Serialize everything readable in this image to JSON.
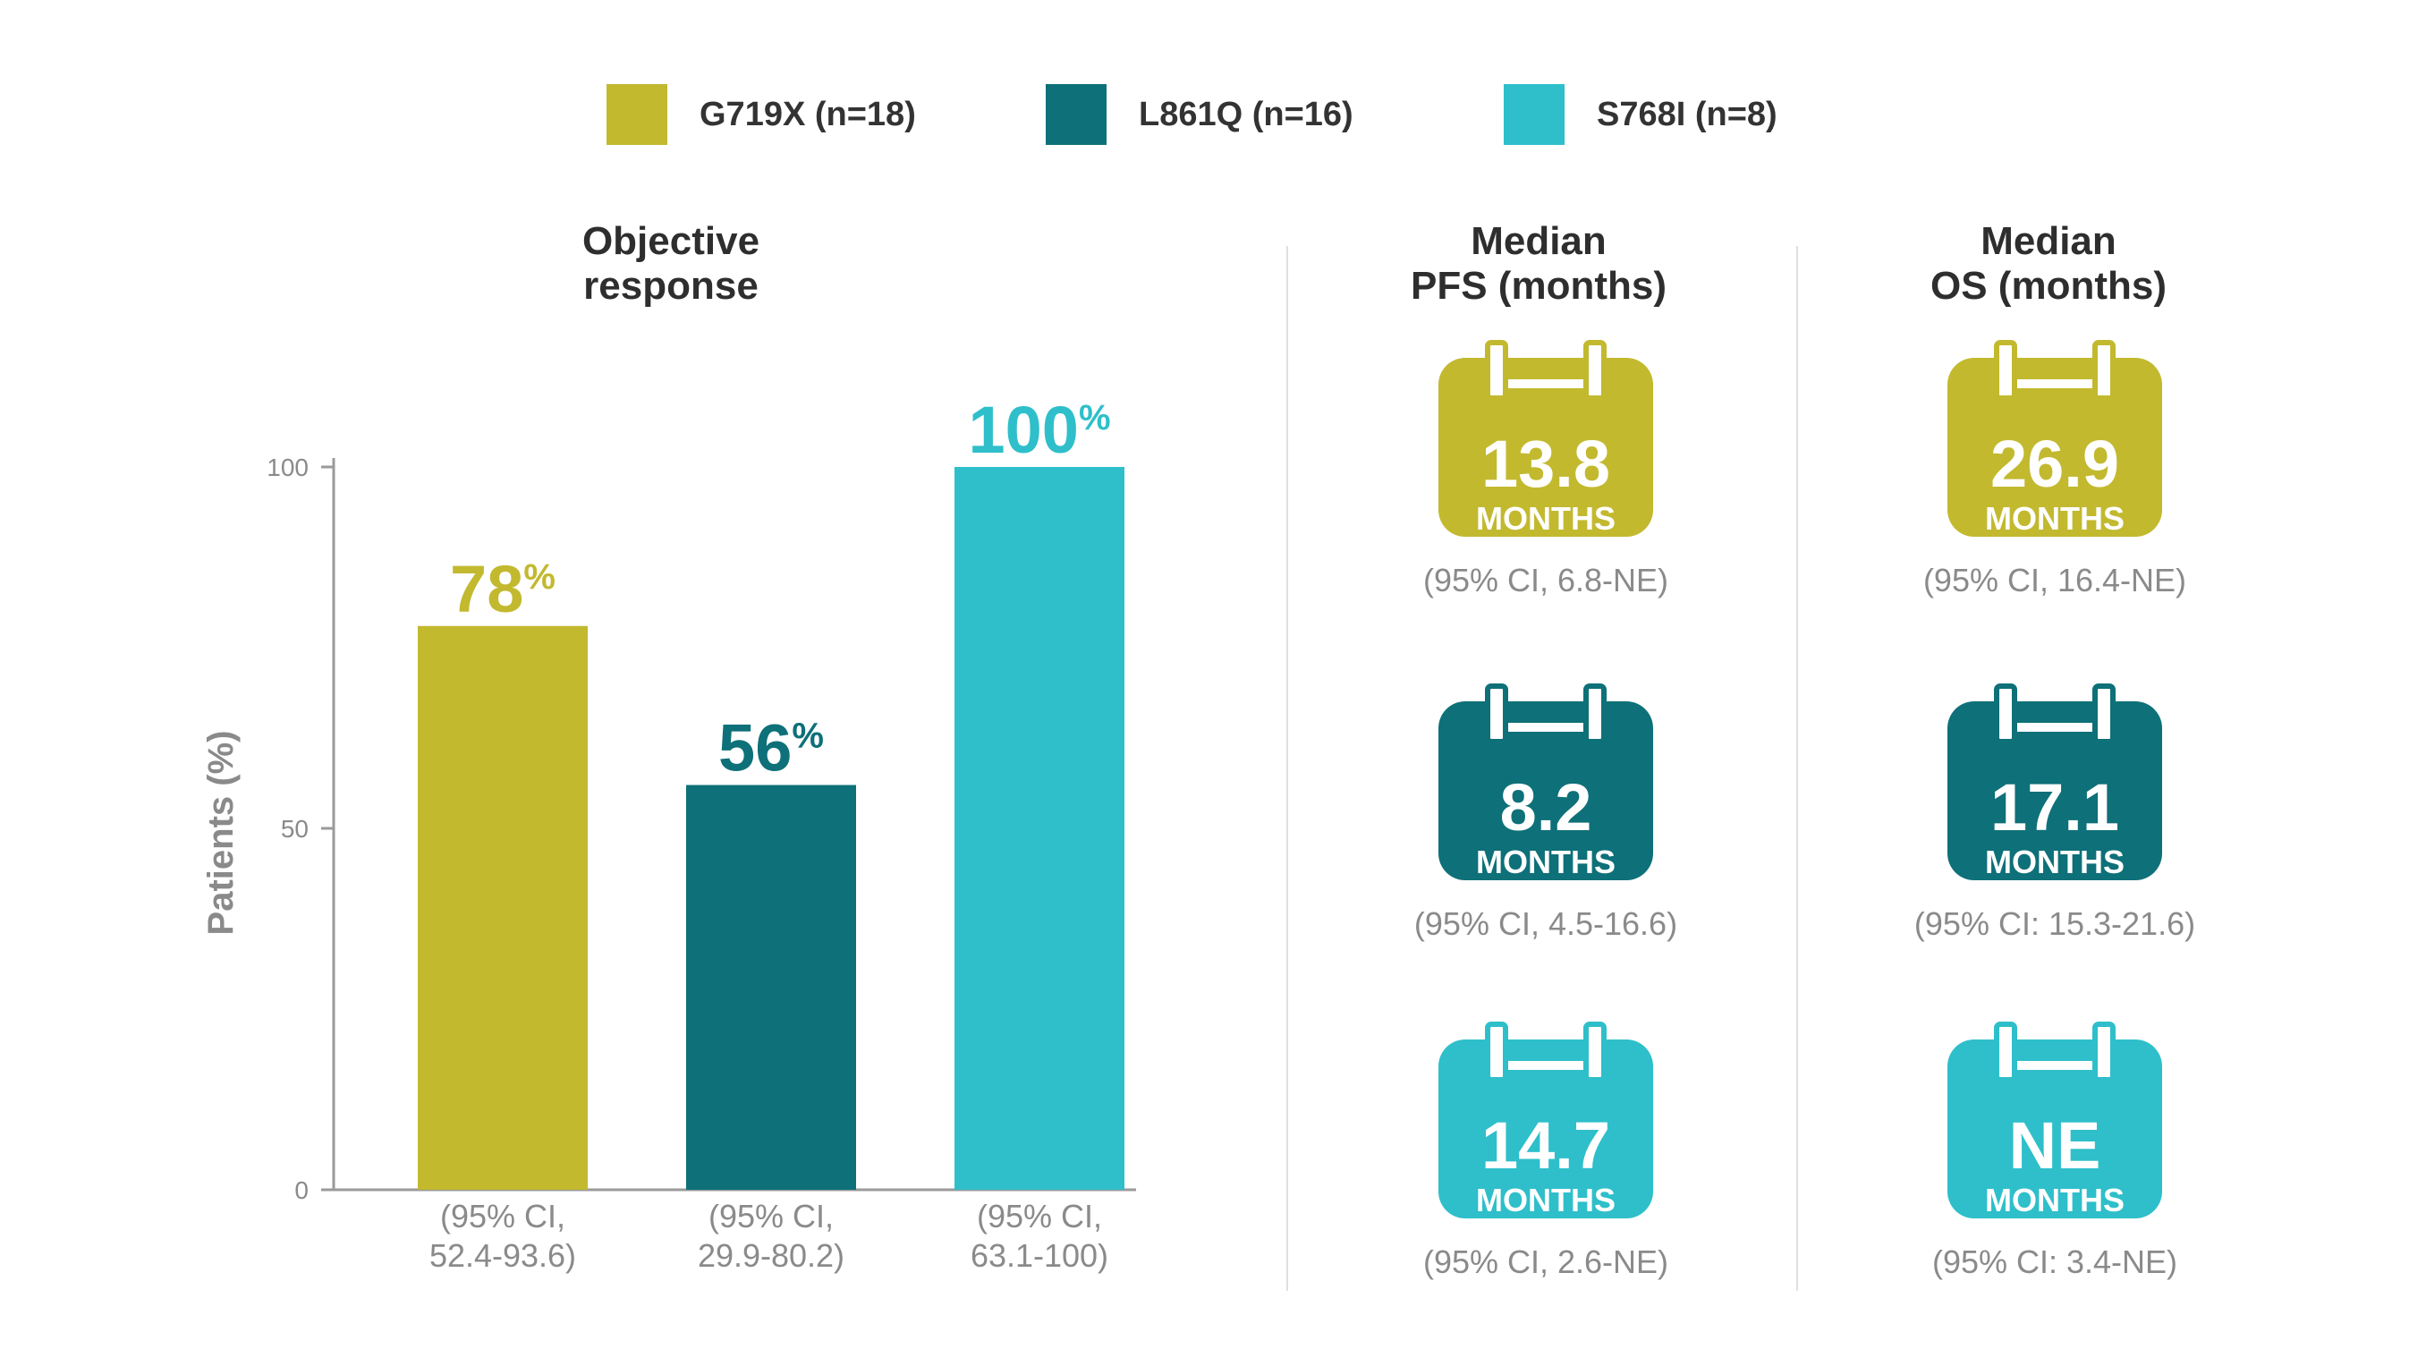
{
  "colors": {
    "G719X": "#c2b92f",
    "L861Q": "#0e7078",
    "S768I": "#2ebfca",
    "axis": "#9a9a9a",
    "ci_text": "#8a8a8a"
  },
  "legend": [
    {
      "label": "G719X (n=18)",
      "color": "#c2b92f"
    },
    {
      "label": "L861Q (n=16)",
      "color": "#0e7078"
    },
    {
      "label": "S768I (n=8)",
      "color": "#2ebfca"
    }
  ],
  "panels": {
    "objective_response": {
      "title_line1": "Objective",
      "title_line2": "response"
    },
    "pfs": {
      "title_line1": "Median",
      "title_line2": "PFS (months)"
    },
    "os": {
      "title_line1": "Median",
      "title_line2": "OS (months)"
    }
  },
  "chart_data": {
    "type": "bar",
    "title": "Objective response",
    "ylabel": "Patients (%)",
    "ylim": [
      0,
      100
    ],
    "yticks": [
      0,
      50,
      100
    ],
    "grid": false,
    "categories": [
      "G719X (n=18)",
      "L861Q (n=16)",
      "S768I (n=8)"
    ],
    "values": [
      78,
      56,
      100
    ],
    "value_labels": [
      "78",
      "56",
      "100"
    ],
    "value_suffix": "%",
    "colors": [
      "#c2b92f",
      "#0e7078",
      "#2ebfca"
    ],
    "ci_labels": [
      [
        "(95% CI,",
        "52.4-93.6)"
      ],
      [
        "(95% CI,",
        "29.9-80.2)"
      ],
      [
        "(95% CI,",
        "63.1-100)"
      ]
    ]
  },
  "tiles": {
    "pfs": [
      {
        "value": "13.8",
        "unit": "MONTHS",
        "ci": "(95% CI, 6.8-NE)",
        "color": "#c2b92f"
      },
      {
        "value": "8.2",
        "unit": "MONTHS",
        "ci": "(95% CI, 4.5-16.6)",
        "color": "#0e7078"
      },
      {
        "value": "14.7",
        "unit": "MONTHS",
        "ci": "(95% CI, 2.6-NE)",
        "color": "#2ebfca"
      }
    ],
    "os": [
      {
        "value": "26.9",
        "unit": "MONTHS",
        "ci": "(95% CI, 16.4-NE)",
        "color": "#c2b92f"
      },
      {
        "value": "17.1",
        "unit": "MONTHS",
        "ci": "(95% CI: 15.3-21.6)",
        "color": "#0e7078"
      },
      {
        "value": "NE",
        "unit": "MONTHS",
        "ci": "(95% CI: 3.4-NE)",
        "color": "#2ebfca"
      }
    ]
  }
}
